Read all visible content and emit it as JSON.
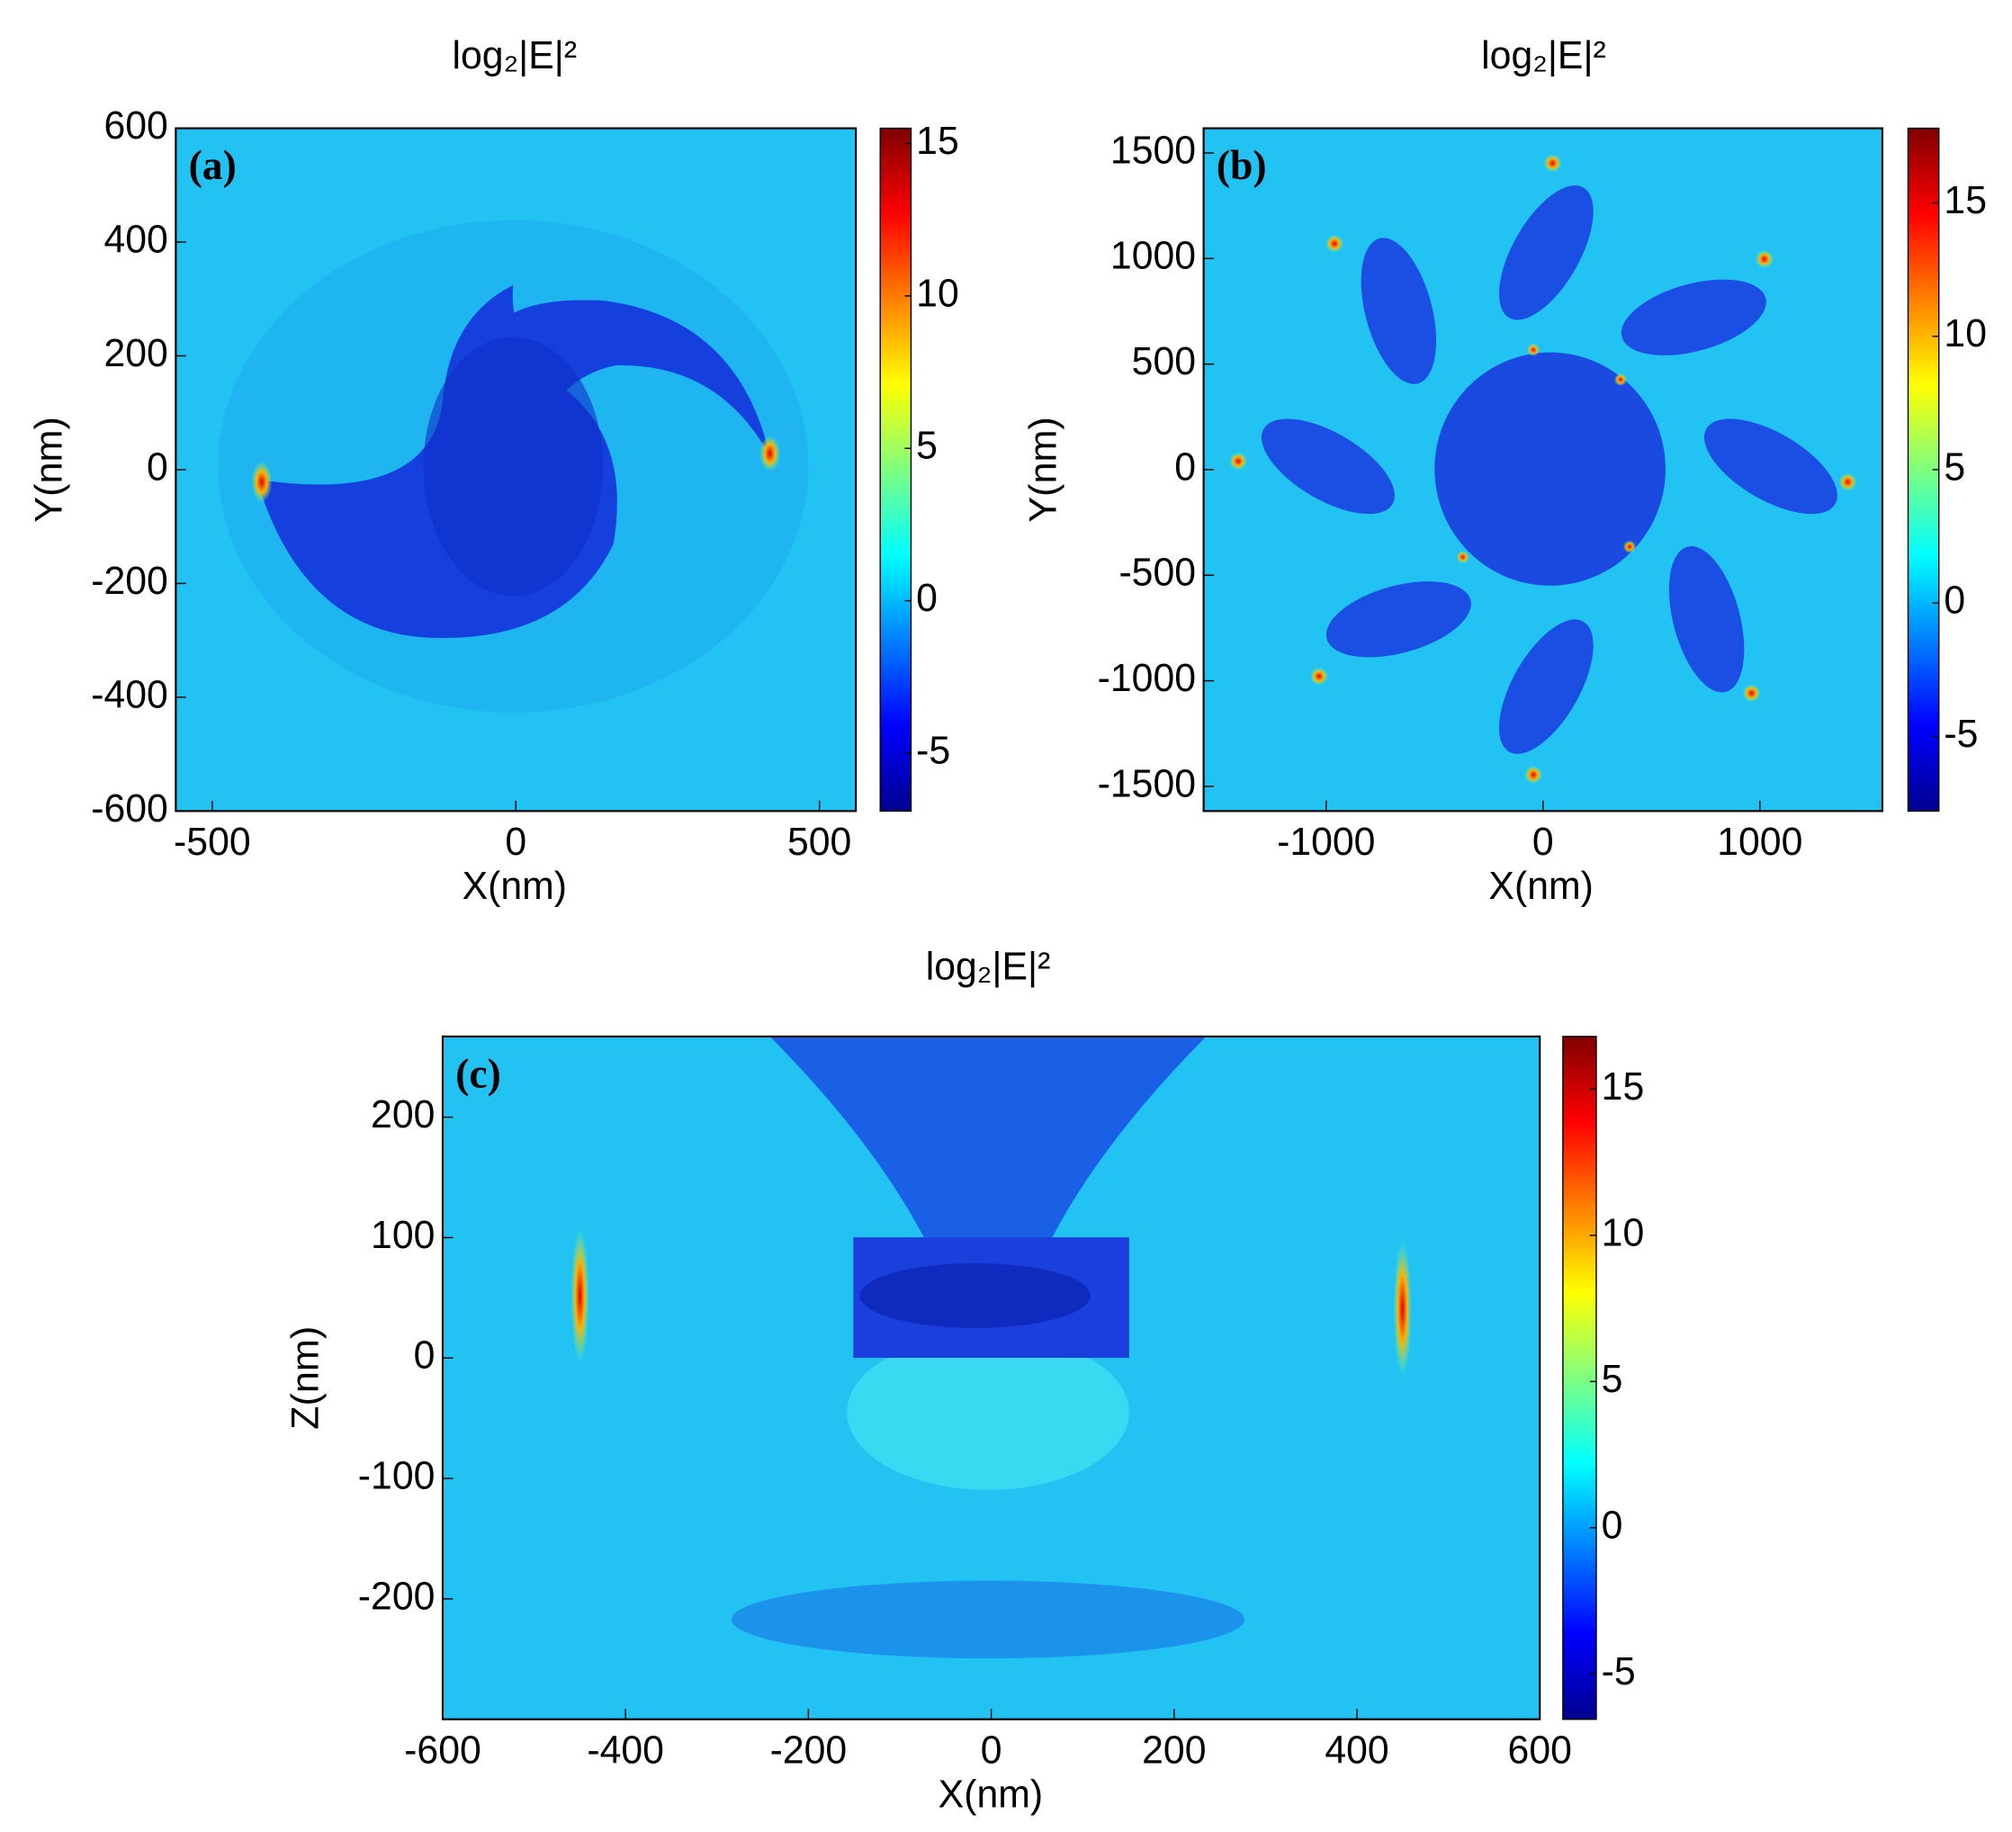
{
  "chart_data": [
    {
      "type": "heatmap",
      "title": "log₂|E|²",
      "panel_label": "(a)",
      "xlabel": "X(nm)",
      "ylabel": "Y(nm)",
      "xlim": [
        -560,
        560
      ],
      "ylim": [
        -600,
        600
      ],
      "xticks": [
        -500,
        0,
        500
      ],
      "yticks": [
        -600,
        -400,
        -200,
        0,
        200,
        400,
        600
      ],
      "colorbar": {
        "clim": [
          -6.9,
          15.5
        ],
        "ticks": [
          -5,
          0,
          5,
          10,
          15
        ]
      }
    },
    {
      "type": "heatmap",
      "title": "log₂|E|²",
      "panel_label": "(b)",
      "xlabel": "X(nm)",
      "ylabel": "Y(nm)",
      "xlim": [
        -1565,
        1565
      ],
      "ylim": [
        -1617,
        1617
      ],
      "xticks": [
        -1000,
        0,
        1000
      ],
      "yticks": [
        -1500,
        -1000,
        -500,
        0,
        500,
        1000,
        1500
      ],
      "colorbar": {
        "clim": [
          -7.8,
          17.8
        ],
        "ticks": [
          -5,
          0,
          5,
          10,
          15
        ]
      }
    },
    {
      "type": "heatmap",
      "title": "log₂|E|²",
      "panel_label": "(c)",
      "xlabel": "X(nm)",
      "ylabel": "Z(nm)",
      "xlim": [
        -600,
        600
      ],
      "ylim": [
        -300,
        267
      ],
      "xticks": [
        -600,
        -400,
        -200,
        0,
        200,
        400,
        600
      ],
      "yticks": [
        -200,
        -100,
        0,
        100,
        200
      ],
      "colorbar": {
        "clim": [
          -6.55,
          16.8
        ],
        "ticks": [
          -5,
          0,
          5,
          10,
          15
        ]
      }
    }
  ]
}
